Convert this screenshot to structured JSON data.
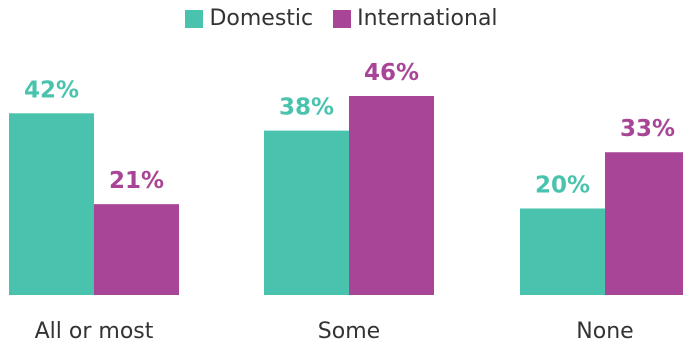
{
  "chart_data": {
    "type": "bar",
    "categories": [
      "All or most",
      "Some",
      "None"
    ],
    "series": [
      {
        "name": "Domestic",
        "values": [
          42,
          38,
          20
        ],
        "labels": [
          "42%",
          "38%",
          "20%"
        ],
        "color": "#4ac3ae"
      },
      {
        "name": "International",
        "values": [
          21,
          46,
          33
        ],
        "labels": [
          "21%",
          "46%",
          "33%"
        ],
        "color": "#a84597"
      }
    ],
    "ylim": [
      0,
      46
    ],
    "legend_position": "top-center",
    "grid": false
  }
}
